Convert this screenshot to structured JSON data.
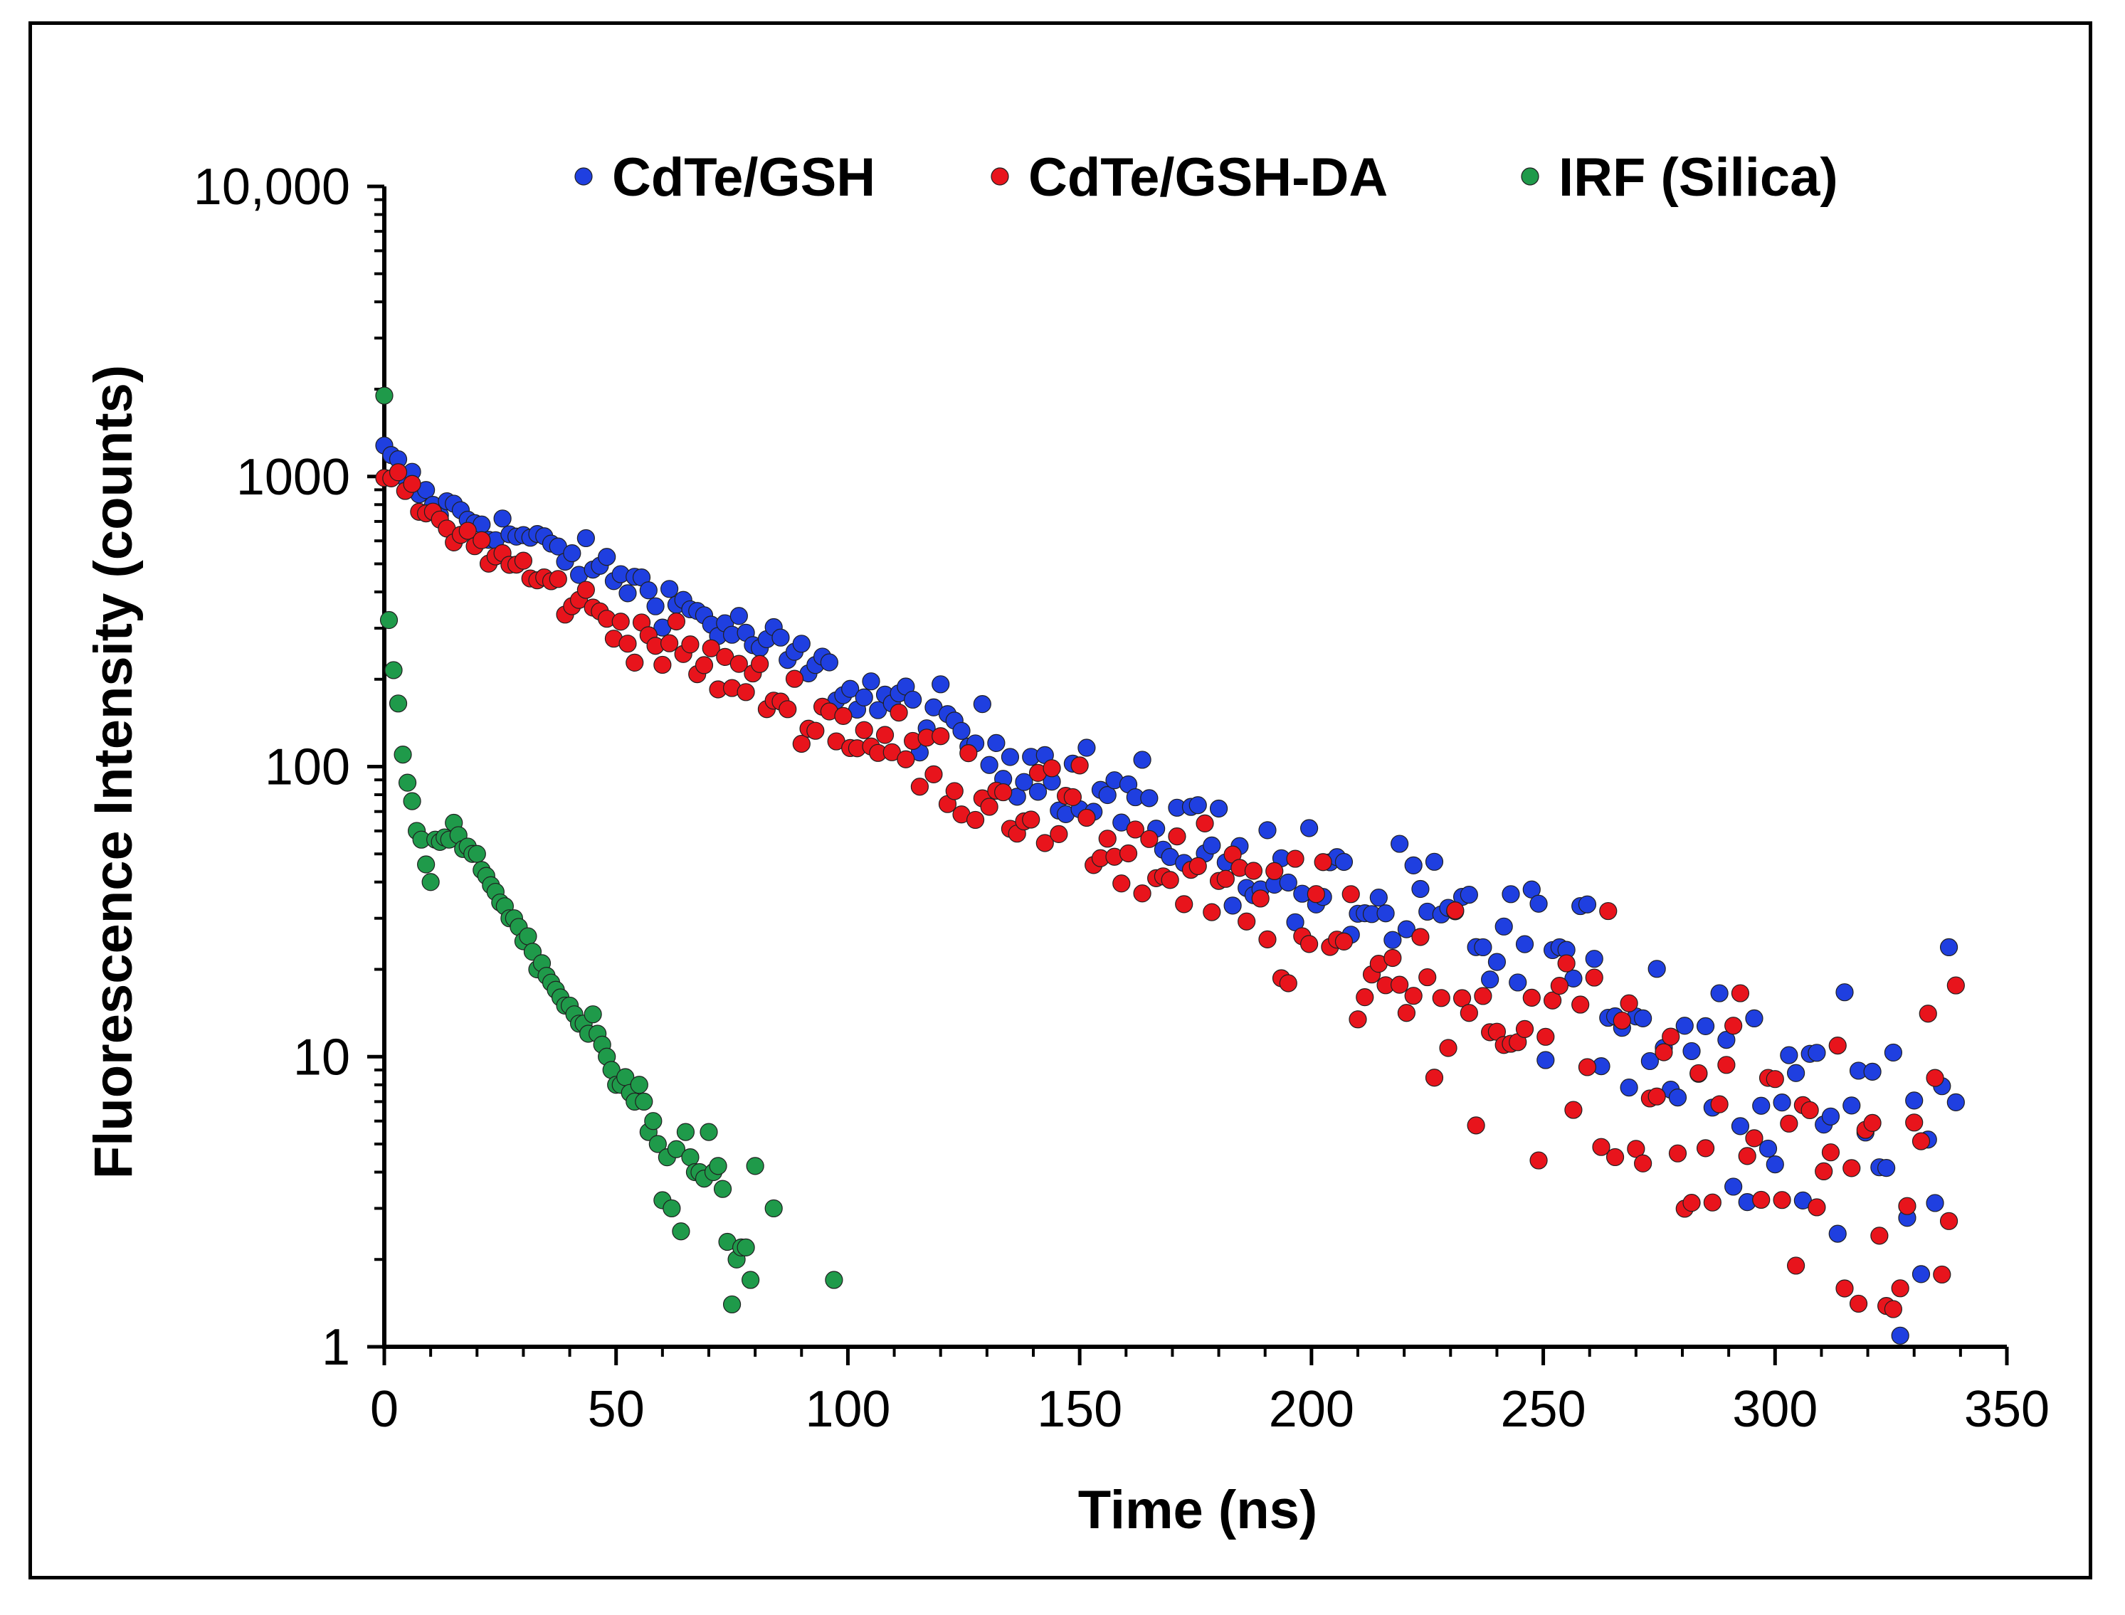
{
  "chart_data": {
    "type": "scatter",
    "title": "",
    "xlabel": "Time (ns)",
    "ylabel": "Fluorescence Intensity (counts)",
    "xlim": [
      0,
      350
    ],
    "ylim": [
      1,
      10000
    ],
    "yscale": "log",
    "grid": false,
    "legend_position": "top",
    "x_ticks": [
      0,
      50,
      100,
      150,
      200,
      250,
      300,
      350
    ],
    "x_tick_labels": [
      "0",
      "50",
      "100",
      "150",
      "200",
      "250",
      "300",
      "350"
    ],
    "y_ticks": [
      1,
      10,
      100,
      1000,
      10000
    ],
    "y_tick_labels": [
      "1",
      "10",
      "100",
      "1000",
      "10,000"
    ],
    "series": [
      {
        "name": "CdTe/GSH",
        "color": "#1f3fe0",
        "marker": "circle",
        "x_start": 0,
        "x_step": 1.5,
        "y_start": 1200,
        "y_end": 4.5,
        "points_approx": [
          [
            0,
            1200
          ],
          [
            10,
            820
          ],
          [
            50,
            460
          ],
          [
            100,
            190
          ],
          [
            150,
            88
          ],
          [
            200,
            38
          ],
          [
            250,
            22
          ],
          [
            300,
            8
          ],
          [
            340,
            4.5
          ]
        ]
      },
      {
        "name": "CdTe/GSH-DA",
        "color": "#e8141c",
        "marker": "circle",
        "x_start": 0,
        "x_step": 1.5,
        "y_start": 1050,
        "y_end": 3.3,
        "points_approx": [
          [
            0,
            1050
          ],
          [
            10,
            720
          ],
          [
            50,
            310
          ],
          [
            100,
            135
          ],
          [
            150,
            62
          ],
          [
            200,
            26
          ],
          [
            250,
            12
          ],
          [
            300,
            5
          ],
          [
            340,
            3.3
          ]
        ]
      },
      {
        "name": "IRF (Silica)",
        "color": "#1f9a4a",
        "marker": "circle",
        "x": [
          0,
          1,
          2,
          3,
          4,
          5,
          6,
          7,
          8,
          9,
          10,
          11,
          12,
          13,
          14,
          15,
          16,
          17,
          18,
          19,
          20,
          21,
          22,
          23,
          24,
          25,
          26,
          27,
          28,
          29,
          30,
          31,
          32,
          33,
          34,
          35,
          36,
          37,
          38,
          39,
          40,
          41,
          42,
          43,
          44,
          45,
          46,
          47,
          48,
          49,
          50,
          51,
          52,
          53,
          54,
          55,
          56,
          57,
          58,
          59,
          60,
          61,
          62,
          63,
          64,
          65,
          66,
          67,
          68,
          69,
          70,
          71,
          72,
          73,
          74,
          75,
          76,
          77,
          78,
          79,
          80,
          84,
          97
        ],
        "y": [
          1900,
          320,
          215,
          165,
          110,
          88,
          76,
          60,
          56,
          46,
          40,
          56,
          55,
          57,
          56,
          64,
          58,
          52,
          53,
          50,
          50,
          44,
          42,
          39,
          37,
          34,
          33,
          30,
          30,
          28,
          25,
          26,
          23,
          20,
          21,
          19,
          18,
          17,
          16,
          15,
          15,
          14,
          13,
          13,
          12,
          14,
          12,
          11,
          10,
          9,
          8,
          8,
          8.5,
          7.5,
          7,
          8,
          7,
          5.5,
          6,
          5,
          3.2,
          4.5,
          3,
          4.8,
          2.5,
          5.5,
          4.5,
          4,
          4,
          3.8,
          5.5,
          4,
          4.2,
          3.5,
          2.3,
          1.4,
          2,
          2.2,
          2.2,
          1.7,
          4.2,
          3,
          1.7
        ]
      }
    ]
  }
}
